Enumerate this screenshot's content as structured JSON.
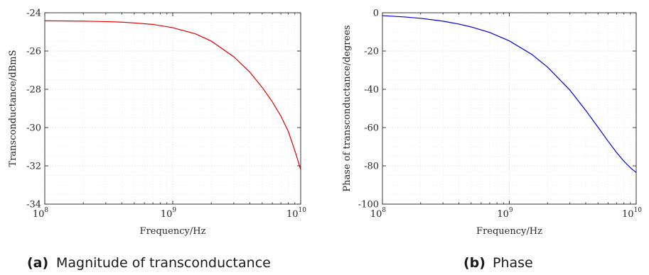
{
  "chart_data": [
    {
      "type": "line",
      "xlabel": "Frequency/Hz",
      "ylabel": "Transconductance/dBmS",
      "xscale": "log",
      "xlim": [
        100000000,
        10000000000
      ],
      "ylim": [
        -34,
        -24
      ],
      "xticks": [
        "10^8",
        "10^9",
        "10^10"
      ],
      "yticks": [
        "-24",
        "-26",
        "-28",
        "-30",
        "-32",
        "-34"
      ],
      "grid": true,
      "series": [
        {
          "color": "#e00000",
          "x": [
            100000000,
            150000000,
            200000000,
            300000000,
            400000000,
            500000000,
            700000000,
            1000000000,
            1500000000,
            2000000000,
            3000000000,
            4000000000,
            5000000000,
            6000000000,
            7000000000,
            8000000000,
            9000000000,
            10000000000
          ],
          "y": [
            -24.42,
            -24.43,
            -24.44,
            -24.46,
            -24.49,
            -24.53,
            -24.61,
            -24.78,
            -25.1,
            -25.48,
            -26.3,
            -27.1,
            -27.9,
            -28.65,
            -29.4,
            -30.2,
            -31.2,
            -32.2
          ]
        }
      ],
      "caption": {
        "label": "(a)",
        "text": "Magnitude of transconductance"
      }
    },
    {
      "type": "line",
      "xlabel": "Frequency/Hz",
      "ylabel": "Phase of transconductance/degrees",
      "xscale": "log",
      "xlim": [
        100000000,
        10000000000
      ],
      "ylim": [
        -100,
        0
      ],
      "xticks": [
        "10^8",
        "10^9",
        "10^10"
      ],
      "yticks": [
        "0",
        "-20",
        "-40",
        "-60",
        "-80",
        "-100"
      ],
      "grid": true,
      "series": [
        {
          "color": "#0000e0",
          "x": [
            100000000,
            150000000,
            200000000,
            300000000,
            400000000,
            500000000,
            700000000,
            1000000000,
            1500000000,
            2000000000,
            3000000000,
            4000000000,
            5000000000,
            6000000000,
            7000000000,
            8000000000,
            9000000000,
            10000000000
          ],
          "y": [
            -1.5,
            -2.2,
            -2.9,
            -4.4,
            -5.9,
            -7.4,
            -10.3,
            -14.7,
            -21.7,
            -28.4,
            -40.4,
            -51.0,
            -59.8,
            -67.1,
            -73.0,
            -77.6,
            -81.0,
            -83.5
          ]
        }
      ],
      "caption": {
        "label": "(b)",
        "text": "Phase"
      }
    }
  ]
}
